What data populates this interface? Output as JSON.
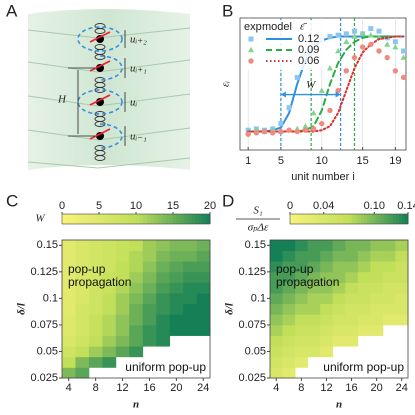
{
  "diagram": {
    "panel": "A",
    "labels": [
      "uᵢ₊₂",
      "uᵢ₊₁",
      "uᵢ",
      "uᵢ₋₁"
    ],
    "height_label": "H"
  },
  "chart_data": [
    {
      "type": "line",
      "panel": "B",
      "xlabel": "unit number i",
      "ylabel": "εᵢ",
      "xlim": [
        0,
        20.3
      ],
      "ylim": [
        0,
        1
      ],
      "xticks": [
        1,
        5,
        10,
        15,
        19
      ],
      "grid": true,
      "legend_headers": [
        "exp",
        "model",
        "ε̄"
      ],
      "x": [
        1,
        2,
        3,
        4,
        5,
        6,
        7,
        8,
        9,
        10,
        11,
        12,
        13,
        14,
        15,
        16,
        17,
        18,
        19,
        20
      ],
      "series": [
        {
          "name": "0.12",
          "color": "#2f8fe0",
          "exp_color": "#8cc6ef",
          "dash": "none",
          "front_bounds": [
            5,
            12.3
          ],
          "values": [
            0.15,
            0.16,
            0.15,
            0.16,
            0.2,
            0.32,
            0.55,
            0.72,
            0.8,
            0.84,
            0.86,
            0.87,
            0.88,
            0.9,
            0.88,
            0.92,
            0.9,
            0.85,
            0.82,
            0.75
          ],
          "model": [
            0.14,
            0.14,
            0.14,
            0.15,
            0.17,
            0.28,
            0.5,
            0.68,
            0.78,
            0.83,
            0.85,
            0.86,
            0.86,
            0.86,
            0.86,
            0.86,
            0.86,
            0.86,
            0.86,
            0.86
          ]
        },
        {
          "name": "0.09",
          "color": "#2aab45",
          "exp_color": "#86d38e",
          "dash": "6 4",
          "front_bounds": [
            8.7,
            14
          ],
          "values": [
            0.13,
            0.15,
            0.14,
            0.15,
            0.14,
            0.15,
            0.16,
            0.18,
            0.28,
            0.45,
            0.62,
            0.75,
            0.82,
            0.86,
            0.88,
            0.87,
            0.85,
            0.8,
            0.78,
            0.7
          ],
          "model": [
            0.14,
            0.14,
            0.14,
            0.14,
            0.14,
            0.14,
            0.14,
            0.15,
            0.18,
            0.3,
            0.5,
            0.66,
            0.76,
            0.82,
            0.85,
            0.86,
            0.86,
            0.86,
            0.86,
            0.86
          ]
        },
        {
          "name": "0.06",
          "color": "#d8302a",
          "exp_color": "#f08a80",
          "dash": "1.5 2.5",
          "values": [
            0.12,
            0.13,
            0.14,
            0.13,
            0.14,
            0.15,
            0.14,
            0.15,
            0.16,
            0.2,
            0.3,
            0.45,
            0.6,
            0.7,
            0.78,
            0.8,
            0.75,
            0.7,
            0.6,
            0.55
          ],
          "model": [
            0.14,
            0.14,
            0.14,
            0.14,
            0.14,
            0.14,
            0.14,
            0.14,
            0.14,
            0.15,
            0.18,
            0.28,
            0.45,
            0.62,
            0.74,
            0.8,
            0.84,
            0.85,
            0.86,
            0.86
          ]
        }
      ],
      "width_arrow": {
        "label": "W",
        "from": 5,
        "to": 12.3
      }
    },
    {
      "type": "heatmap",
      "panel": "C",
      "xlabel": "n",
      "ylabel": "δ/l",
      "colorbar_label": "W",
      "clim": [
        0,
        20
      ],
      "cticks": [
        0,
        5,
        10,
        15,
        20
      ],
      "colormap": [
        "#f8f27c",
        "#c2df5a",
        "#158056"
      ],
      "xlim": [
        3,
        25
      ],
      "ylim": [
        0.025,
        0.155
      ],
      "xticks": [
        4,
        8,
        12,
        16,
        20,
        24
      ],
      "yticks": [
        0.025,
        0.05,
        0.075,
        0.1,
        0.125,
        0.15
      ],
      "annotations": [
        [
          "pop-up",
          "propagation"
        ],
        [
          "uniform pop-up"
        ]
      ],
      "x": [
        4,
        6,
        8,
        10,
        12,
        14,
        16,
        18,
        20,
        22,
        24
      ],
      "y": [
        0.03,
        0.04,
        0.05,
        0.06,
        0.07,
        0.08,
        0.09,
        0.1,
        0.11,
        0.12,
        0.13,
        0.14,
        0.15
      ],
      "values": [
        [
          14,
          16,
          null,
          null,
          null,
          null,
          null,
          null,
          null,
          null,
          null
        ],
        [
          10,
          14,
          16,
          18,
          null,
          null,
          null,
          null,
          null,
          null,
          null
        ],
        [
          8,
          10,
          12,
          14,
          16,
          18,
          null,
          null,
          null,
          null,
          null
        ],
        [
          6,
          8,
          10,
          12,
          14,
          16,
          18,
          19,
          null,
          null,
          null
        ],
        [
          5,
          7,
          9,
          11,
          13,
          16,
          18,
          19,
          20,
          20,
          20
        ],
        [
          5,
          7,
          9,
          11,
          13,
          15,
          17,
          19,
          20,
          20,
          20
        ],
        [
          4,
          7,
          8,
          10,
          12,
          15,
          17,
          18,
          19,
          20,
          20
        ],
        [
          4,
          6,
          8,
          10,
          12,
          14,
          16,
          18,
          19,
          19,
          20
        ],
        [
          4,
          6,
          8,
          9,
          11,
          13,
          15,
          17,
          18,
          19,
          19
        ],
        [
          4,
          6,
          7,
          9,
          10,
          12,
          14,
          16,
          17,
          18,
          18
        ],
        [
          4,
          6,
          7,
          8,
          10,
          11,
          13,
          15,
          16,
          17,
          17
        ],
        [
          4,
          6,
          7,
          8,
          9,
          11,
          12,
          14,
          15,
          15,
          16
        ],
        [
          4,
          6,
          7,
          8,
          9,
          10,
          12,
          13,
          14,
          14,
          15
        ]
      ]
    },
    {
      "type": "heatmap",
      "panel": "D",
      "xlabel": "n",
      "ylabel": "δ/l",
      "colorbar_label": [
        "S₁",
        "σₚΔε"
      ],
      "clim": [
        0,
        0.14
      ],
      "cticks": [
        0,
        0.04,
        {
          "value": 0.1,
          "label": "0.10"
        },
        0.14
      ],
      "colormap": [
        "#f8f27c",
        "#c2df5a",
        "#158056"
      ],
      "xlim": [
        3,
        25
      ],
      "ylim": [
        0.025,
        0.155
      ],
      "xticks": [
        4,
        8,
        12,
        16,
        20,
        24
      ],
      "yticks": [
        0.025,
        0.05,
        0.075,
        0.1,
        0.125,
        0.15
      ],
      "annotations": [
        [
          "pop-up",
          "propagation"
        ],
        [
          "uniform pop-up"
        ]
      ],
      "x": [
        4,
        6,
        8,
        10,
        12,
        14,
        16,
        18,
        20,
        22,
        24
      ],
      "y": [
        0.03,
        0.04,
        0.05,
        0.06,
        0.07,
        0.08,
        0.09,
        0.1,
        0.11,
        0.12,
        0.13,
        0.14,
        0.15
      ],
      "values": [
        [
          0.04,
          0.03,
          null,
          null,
          null,
          null,
          null,
          null,
          null,
          null,
          null
        ],
        [
          0.05,
          0.04,
          0.03,
          null,
          null,
          null,
          null,
          null,
          null,
          null,
          null
        ],
        [
          0.06,
          0.05,
          0.04,
          0.04,
          0.03,
          null,
          null,
          null,
          null,
          null,
          null
        ],
        [
          0.07,
          0.06,
          0.05,
          0.05,
          0.04,
          0.03,
          0.03,
          null,
          null,
          null,
          null
        ],
        [
          0.08,
          0.07,
          0.06,
          0.06,
          0.05,
          0.04,
          0.04,
          0.03,
          0.03,
          null,
          null
        ],
        [
          0.09,
          0.08,
          0.07,
          0.07,
          0.06,
          0.05,
          0.05,
          0.04,
          0.04,
          0.03,
          0.03
        ],
        [
          0.1,
          0.09,
          0.08,
          0.08,
          0.07,
          0.06,
          0.05,
          0.05,
          0.04,
          0.04,
          0.04
        ],
        [
          0.11,
          0.1,
          0.09,
          0.08,
          0.08,
          0.07,
          0.06,
          0.06,
          0.05,
          0.05,
          0.04
        ],
        [
          0.12,
          0.11,
          0.1,
          0.09,
          0.09,
          0.08,
          0.07,
          0.06,
          0.06,
          0.05,
          0.05
        ],
        [
          0.12,
          0.12,
          0.11,
          0.1,
          0.09,
          0.09,
          0.08,
          0.07,
          0.07,
          0.06,
          0.06
        ],
        [
          0.13,
          0.12,
          0.12,
          0.11,
          0.1,
          0.09,
          0.09,
          0.08,
          0.07,
          0.07,
          0.06
        ],
        [
          0.14,
          0.13,
          0.12,
          0.12,
          0.11,
          0.1,
          0.1,
          0.09,
          0.08,
          0.08,
          0.07
        ],
        [
          0.14,
          0.14,
          0.13,
          0.12,
          0.12,
          0.11,
          0.1,
          0.1,
          0.09,
          0.09,
          0.08
        ]
      ]
    }
  ]
}
